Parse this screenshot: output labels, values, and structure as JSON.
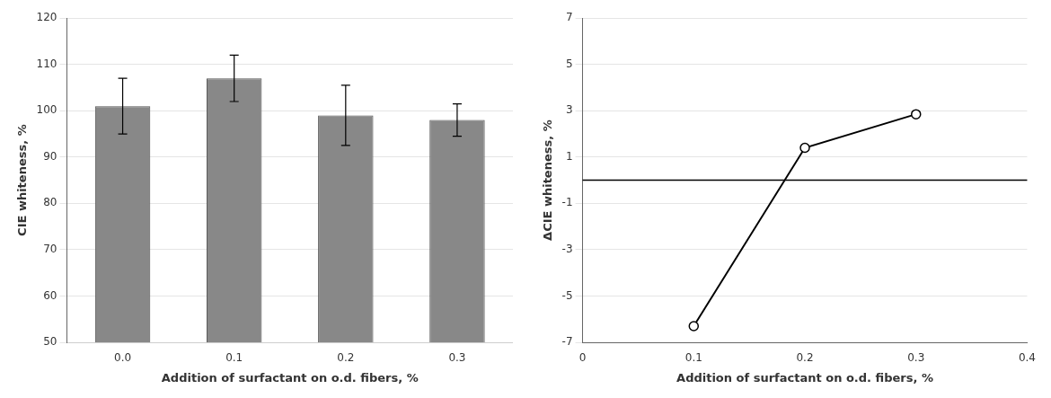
{
  "chart_data": [
    {
      "type": "bar",
      "categories": [
        "0.0",
        "0.1",
        "0.2",
        "0.3"
      ],
      "values": [
        101.0,
        107.0,
        99.0,
        98.0
      ],
      "errors": [
        6.0,
        5.0,
        6.5,
        3.5
      ],
      "color": "#888888",
      "xlabel": "Addition of surfactant on o.d. fibers, %",
      "ylabel": "CIE whiteness, %",
      "ylim": [
        50,
        120
      ],
      "yticks": [
        50,
        60,
        70,
        80,
        90,
        100,
        110,
        120
      ],
      "grid": true
    },
    {
      "type": "line",
      "x": [
        0.1,
        0.2,
        0.3
      ],
      "values": [
        -6.3,
        1.4,
        2.85
      ],
      "color": "#000000",
      "marker": "circle",
      "xlabel": "Addition of surfactant on o.d. fibers, %",
      "ylabel": "ΔCIE whiteness, %",
      "xlim": [
        0,
        0.4
      ],
      "xticks": [
        0,
        0.1,
        0.2,
        0.3,
        0.4
      ],
      "ylim": [
        -7,
        7
      ],
      "yticks": [
        -7,
        -5,
        -3,
        -1,
        1,
        3,
        5,
        7
      ],
      "hline": 0.0,
      "grid": true
    }
  ]
}
